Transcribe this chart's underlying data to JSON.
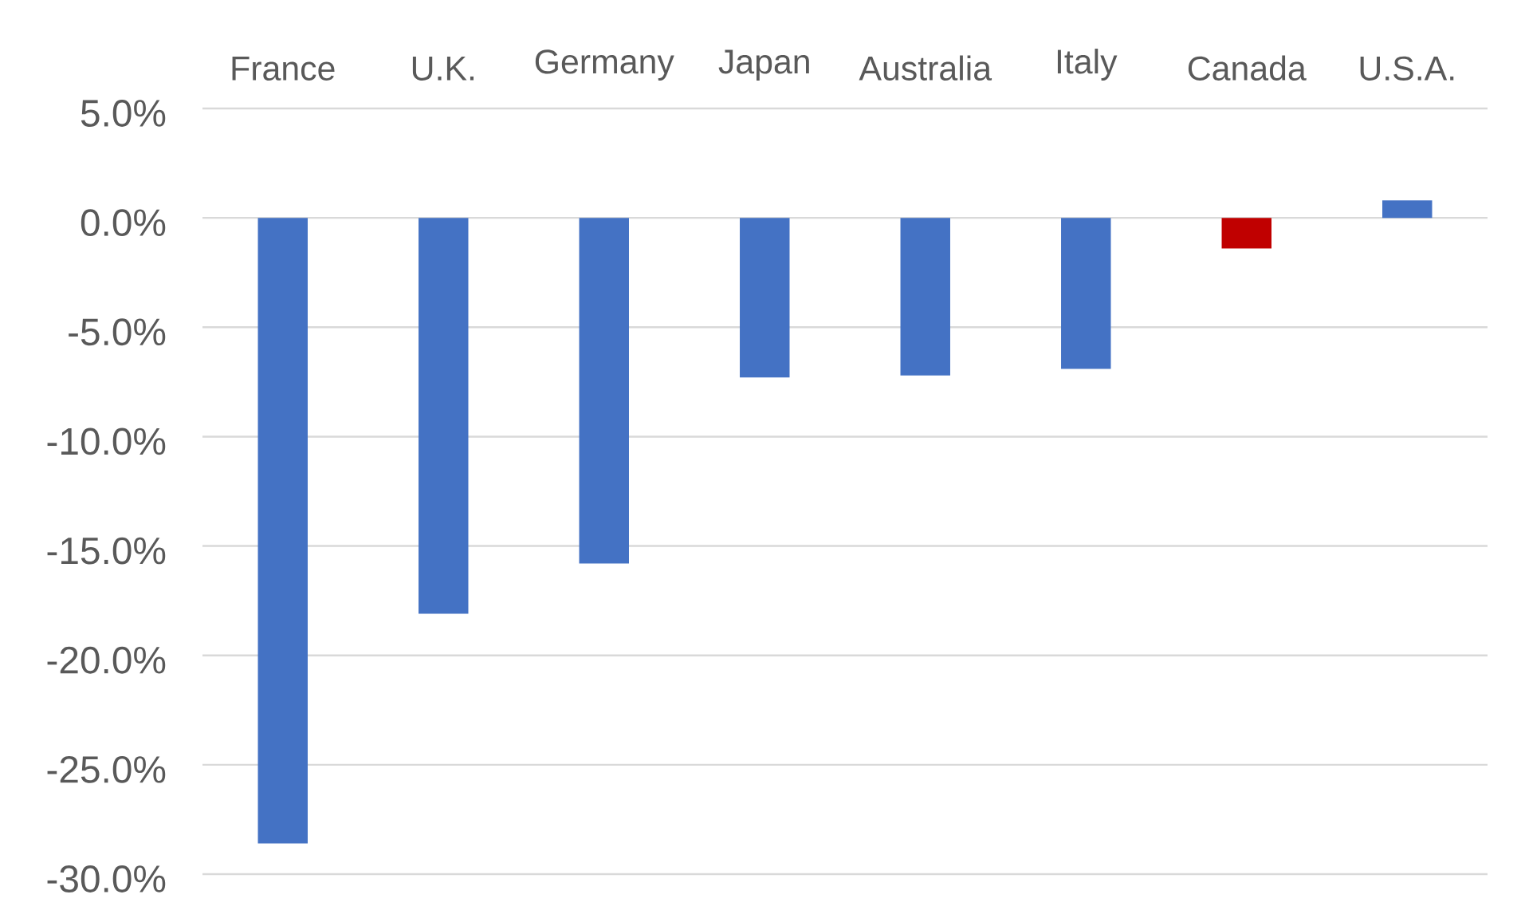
{
  "chart_data": {
    "type": "bar",
    "categories": [
      "France",
      "U.K.",
      "Germany",
      "Japan",
      "Australia",
      "Italy",
      "Canada",
      "U.S.A."
    ],
    "values": [
      -28.6,
      -18.1,
      -15.8,
      -7.3,
      -7.2,
      -6.9,
      -1.4,
      0.8
    ],
    "colors": [
      "#4472c4",
      "#4472c4",
      "#4472c4",
      "#4472c4",
      "#4472c4",
      "#4472c4",
      "#c00000",
      "#4472c4"
    ],
    "ylim": [
      -30,
      5
    ],
    "yticks": [
      {
        "value": 5,
        "label": "5.0%"
      },
      {
        "value": 0,
        "label": "0.0%"
      },
      {
        "value": -5,
        "label": "-5.0%"
      },
      {
        "value": -10,
        "label": "-10.0%"
      },
      {
        "value": -15,
        "label": "-15.0%"
      },
      {
        "value": -20,
        "label": "-20.0%"
      },
      {
        "value": -25,
        "label": "-25.0%"
      },
      {
        "value": -30,
        "label": "-30.0%"
      }
    ],
    "grid": "y"
  }
}
